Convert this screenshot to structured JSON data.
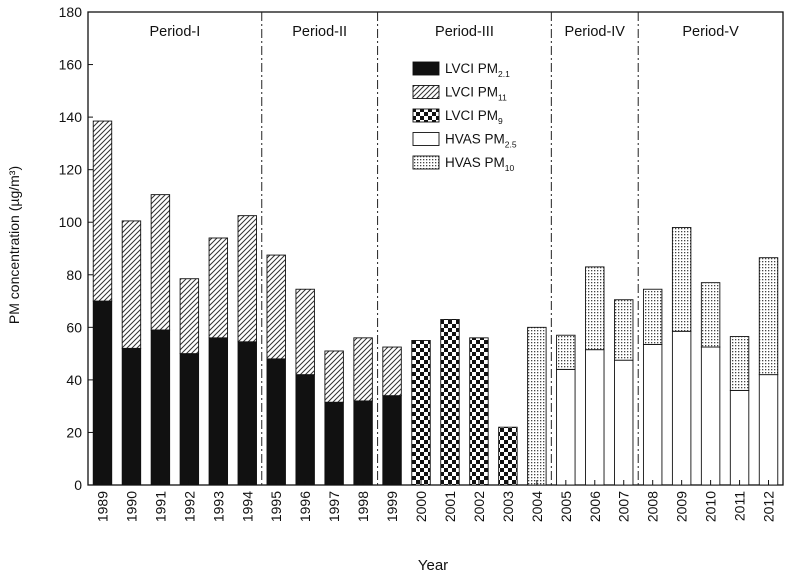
{
  "chart_data": {
    "type": "bar",
    "stacked": true,
    "xlabel": "Year",
    "ylabel": "PM concentration (µg/m³)",
    "ylim": [
      0,
      180
    ],
    "yticks": [
      0,
      20,
      40,
      60,
      80,
      100,
      120,
      140,
      160,
      180
    ],
    "categories": [
      "1989",
      "1990",
      "1991",
      "1992",
      "1993",
      "1994",
      "1995",
      "1996",
      "1997",
      "1998",
      "1999",
      "2000",
      "2001",
      "2002",
      "2003",
      "2004",
      "2005",
      "2006",
      "2007",
      "2008",
      "2009",
      "2010",
      "2011",
      "2012"
    ],
    "periods": [
      {
        "label": "Period-I",
        "start": "1989",
        "end": "1994"
      },
      {
        "label": "Period-II",
        "start": "1995",
        "end": "1998"
      },
      {
        "label": "Period-III",
        "start": "1999",
        "end": "2004"
      },
      {
        "label": "Period-IV",
        "start": "2005",
        "end": "2007"
      },
      {
        "label": "Period-V",
        "start": "2008",
        "end": "2012"
      }
    ],
    "legend_position": "top-center",
    "series": [
      {
        "name": "LVCI PM2.1",
        "label_main": "LVCI PM",
        "label_sub": "2.1",
        "pattern": "solid",
        "values": [
          70,
          52,
          59,
          50,
          56,
          54.5,
          48,
          42,
          31.5,
          32,
          34,
          0,
          0,
          0,
          0,
          0,
          0,
          0,
          0,
          0,
          0,
          0,
          0,
          0
        ]
      },
      {
        "name": "LVCI PM11",
        "label_main": "LVCI PM",
        "label_sub": "11",
        "pattern": "hatch",
        "values": [
          68.5,
          48.5,
          51.5,
          28.5,
          38,
          48,
          39.5,
          32.5,
          19.5,
          24,
          18.5,
          0,
          0,
          0,
          0,
          0,
          0,
          0,
          0,
          0,
          0,
          0,
          0,
          0
        ]
      },
      {
        "name": "LVCI PM9",
        "label_main": "LVCI PM",
        "label_sub": "9",
        "pattern": "checker",
        "values": [
          0,
          0,
          0,
          0,
          0,
          0,
          0,
          0,
          0,
          0,
          0,
          55,
          63,
          56,
          22,
          0,
          0,
          0,
          0,
          0,
          0,
          0,
          0,
          0
        ]
      },
      {
        "name": "HVAS PM2.5",
        "label_main": "HVAS PM",
        "label_sub": "2.5",
        "pattern": "white",
        "values": [
          0,
          0,
          0,
          0,
          0,
          0,
          0,
          0,
          0,
          0,
          0,
          0,
          0,
          0,
          0,
          0,
          44,
          51.5,
          47.5,
          53.5,
          58.5,
          52.5,
          36,
          42
        ]
      },
      {
        "name": "HVAS PM10",
        "label_main": "HVAS PM",
        "label_sub": "10",
        "pattern": "dots",
        "values": [
          0,
          0,
          0,
          0,
          0,
          0,
          0,
          0,
          0,
          0,
          0,
          0,
          0,
          0,
          0,
          60,
          13,
          31.5,
          23,
          21,
          39.5,
          24.5,
          20.5,
          44.5
        ]
      }
    ],
    "grid": false
  }
}
